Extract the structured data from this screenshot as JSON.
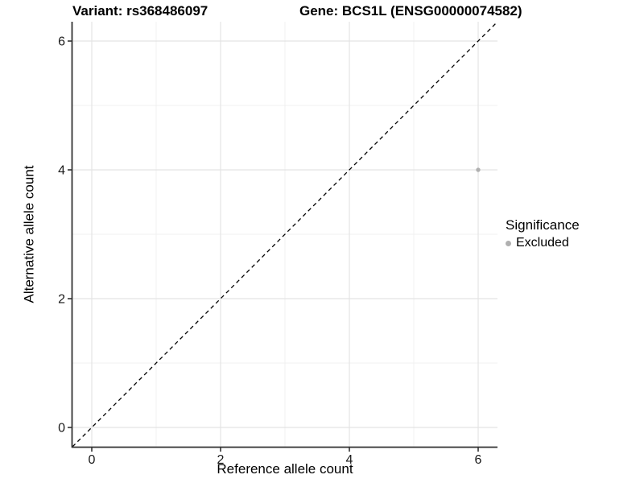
{
  "chart_data": {
    "type": "scatter",
    "title_left": "Variant: rs368486097",
    "title_right": "Gene: BCS1L (ENSG00000074582)",
    "xlabel": "Reference allele count",
    "ylabel": "Alternative allele count",
    "xlim": [
      -0.3,
      6.3
    ],
    "ylim": [
      -0.3,
      6.3
    ],
    "xticks": [
      0,
      2,
      4,
      6
    ],
    "yticks": [
      0,
      2,
      4,
      6
    ],
    "x_minor_ticks": [
      1,
      3,
      5
    ],
    "y_minor_ticks": [
      1,
      3,
      5
    ],
    "grid": "on",
    "reference_line": {
      "type": "identity",
      "slope": 1,
      "intercept": 0,
      "style": "dashed",
      "color": "#000000"
    },
    "series": [
      {
        "name": "Excluded",
        "color": "#b0b0b0",
        "points": [
          {
            "x": 6,
            "y": 4
          }
        ]
      }
    ],
    "legend": {
      "title": "Significance",
      "position": "right",
      "items": [
        {
          "label": "Excluded",
          "color": "#b0b0b0"
        }
      ]
    },
    "colors": {
      "grid_major": "#e4e4e4",
      "grid_minor": "#f1f1f1",
      "axis_line": "#333333",
      "tick_text": "#1a1a1a"
    }
  }
}
